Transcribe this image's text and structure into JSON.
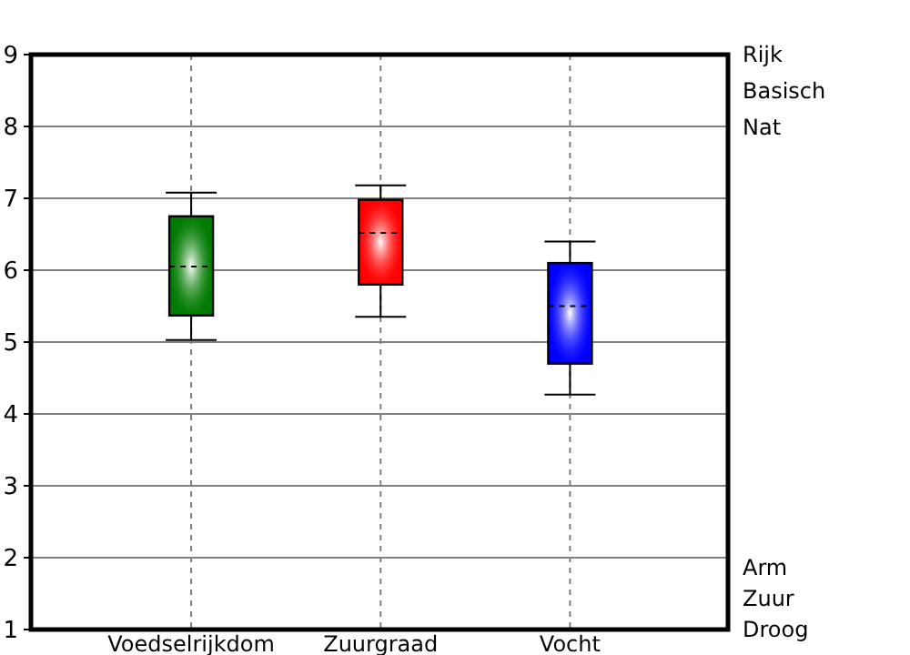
{
  "chart_data": {
    "type": "box",
    "categories": [
      "Voedselrijkdom",
      "Zuurgraad",
      "Vocht"
    ],
    "boxes": [
      {
        "low": 5.03,
        "q1": 5.37,
        "median": 6.05,
        "q3": 6.75,
        "high": 7.08
      },
      {
        "low": 5.35,
        "q1": 5.8,
        "median": 6.52,
        "q3": 6.98,
        "high": 7.18
      },
      {
        "low": 4.27,
        "q1": 4.7,
        "median": 5.5,
        "q3": 6.1,
        "high": 6.4
      }
    ],
    "colors": [
      "#007a00",
      "#ff0000",
      "#0000ff"
    ],
    "ylim": [
      1,
      9
    ],
    "yticks": [
      1,
      2,
      3,
      4,
      5,
      6,
      7,
      8,
      9
    ],
    "grid": true,
    "annotations": [
      "Rijk",
      "Basisch",
      "Nat",
      "Arm",
      "Zuur",
      "Droog"
    ]
  }
}
